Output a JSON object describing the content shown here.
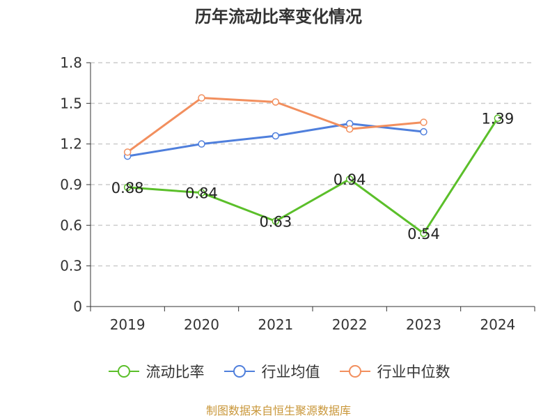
{
  "chart_data": {
    "type": "line",
    "title": "历年流动比率变化情况",
    "categories": [
      "2019",
      "2020",
      "2021",
      "2022",
      "2023",
      "2024"
    ],
    "y_ticks": [
      "0",
      "0.3",
      "0.6",
      "0.9",
      "1.2",
      "1.5",
      "1.8"
    ],
    "ylim": [
      0,
      1.8
    ],
    "grid": true,
    "legend_position": "bottom",
    "series": [
      {
        "name": "流动比率",
        "color": "#5bbf2a",
        "values": [
          0.88,
          0.84,
          0.63,
          0.94,
          0.54,
          1.39
        ],
        "labels": [
          "0.88",
          "0.84",
          "0.63",
          "0.94",
          "0.54",
          "1.39"
        ]
      },
      {
        "name": "行业均值",
        "color": "#4f7fdc",
        "values": [
          1.11,
          1.2,
          1.26,
          1.35,
          1.29,
          null
        ]
      },
      {
        "name": "行业中位数",
        "color": "#f28f5e",
        "values": [
          1.14,
          1.54,
          1.51,
          1.31,
          1.36,
          null
        ]
      }
    ],
    "source": "制图数据来自恒生聚源数据库"
  }
}
